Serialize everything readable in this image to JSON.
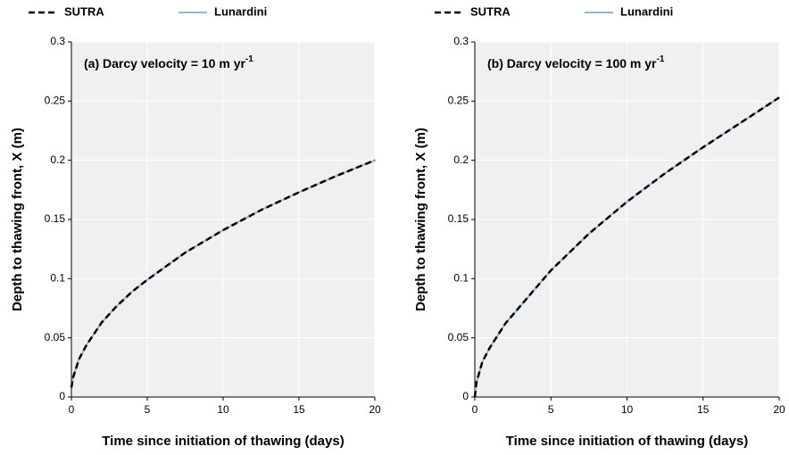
{
  "chart_data": [
    {
      "type": "line",
      "annotation": "(a) Darcy velocity = 10 m yr",
      "annotation_superscript": "-1",
      "x_label": "Time since initiation of thawing (days)",
      "y_label": "Depth to thawing front, X (m)",
      "x": [
        0,
        0.1,
        0.5,
        1,
        2,
        3,
        4,
        5,
        7.5,
        10,
        12.5,
        15,
        17.5,
        20
      ],
      "series": [
        {
          "name": "SUTRA",
          "color": "#000000",
          "dash": true,
          "values": [
            0.008,
            0.016,
            0.032,
            0.044,
            0.063,
            0.077,
            0.089,
            0.099,
            0.122,
            0.141,
            0.158,
            0.173,
            0.187,
            0.2
          ]
        },
        {
          "name": "Lunardini",
          "color": "#95b3d7",
          "dash": false,
          "values": [
            0.008,
            0.016,
            0.032,
            0.044,
            0.063,
            0.077,
            0.089,
            0.099,
            0.122,
            0.141,
            0.158,
            0.173,
            0.187,
            0.2
          ]
        }
      ],
      "xlim": [
        0,
        20
      ],
      "xticks": [
        0,
        5,
        10,
        15,
        20
      ],
      "ylim": [
        0,
        0.3
      ],
      "yticks": [
        0,
        0.05,
        0.1,
        0.15,
        0.2,
        0.25,
        0.3
      ],
      "grid": true
    },
    {
      "type": "line",
      "annotation": "(b) Darcy velocity = 100 m yr",
      "annotation_superscript": "-1",
      "x_label": "Time since initiation of thawing (days)",
      "y_label": "Depth to thawing front, X (m)",
      "x": [
        0,
        0.1,
        0.5,
        1,
        2,
        3,
        4,
        5,
        7.5,
        10,
        12.5,
        15,
        17.5,
        20
      ],
      "series": [
        {
          "name": "SUTRA",
          "color": "#000000",
          "dash": true,
          "values": [
            0,
            0.012,
            0.03,
            0.042,
            0.062,
            0.077,
            0.092,
            0.107,
            0.138,
            0.165,
            0.189,
            0.211,
            0.232,
            0.253
          ]
        },
        {
          "name": "Lunardini",
          "color": "#95b3d7",
          "dash": false,
          "values": [
            0,
            0.012,
            0.03,
            0.042,
            0.062,
            0.077,
            0.092,
            0.107,
            0.138,
            0.165,
            0.189,
            0.211,
            0.232,
            0.253
          ]
        }
      ],
      "xlim": [
        0,
        20
      ],
      "xticks": [
        0,
        5,
        10,
        15,
        20
      ],
      "ylim": [
        0,
        0.3
      ],
      "yticks": [
        0,
        0.05,
        0.1,
        0.15,
        0.2,
        0.25,
        0.3
      ],
      "grid": true
    }
  ]
}
